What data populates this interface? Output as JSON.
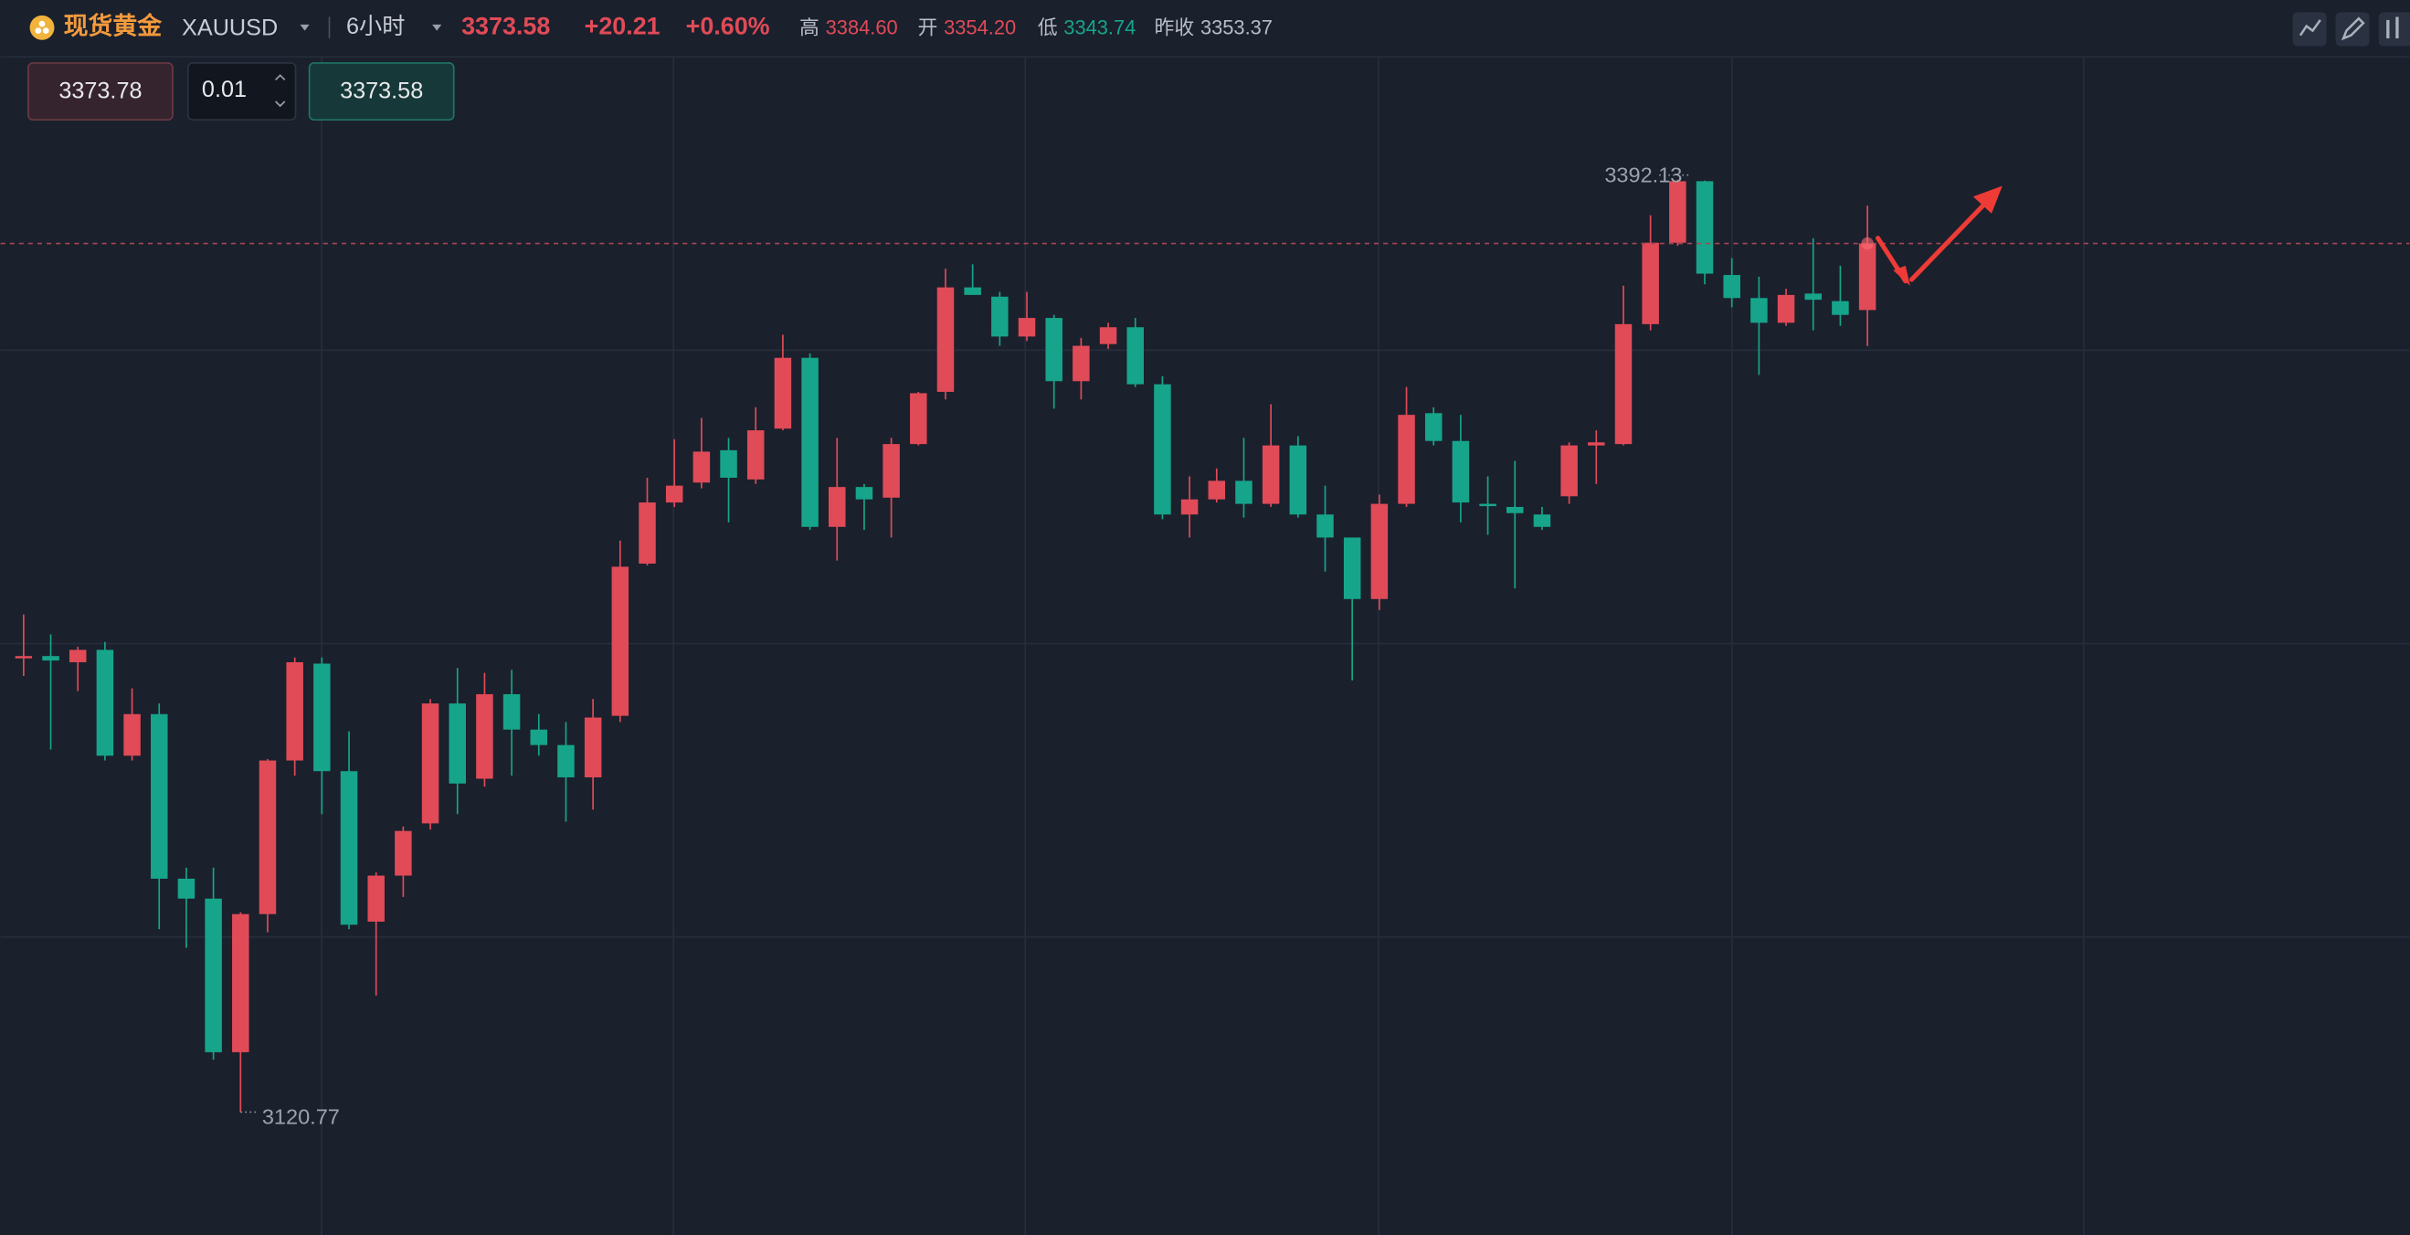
{
  "header": {
    "name": "现货黄金",
    "symbol": "XAUUSD",
    "period": "6小时",
    "price": "3373.58",
    "change": "+20.21",
    "change_pct": "+0.60%",
    "high_label": "高",
    "high": "3384.60",
    "open_label": "开",
    "open": "3354.20",
    "low_label": "低",
    "low": "3343.74",
    "prev_close_label": "昨收",
    "prev_close": "3353.37"
  },
  "order_panel": {
    "sell": "3373.78",
    "lots": "0.01",
    "buy": "3373.58"
  },
  "chart_data": {
    "type": "candlestick",
    "up_color": "#e04b57",
    "down_color": "#16a58a",
    "ylim": [
      3085.0,
      3427.9
    ],
    "open": [
      3253.1,
      3253.5,
      3251.7,
      3255.3,
      3224.5,
      3236.6,
      3188.7,
      3182.9,
      3138.2,
      3178.4,
      3223.1,
      3251.3,
      3220.0,
      3176.2,
      3189.6,
      3204.8,
      3239.7,
      3217.8,
      3242.4,
      3232.1,
      3227.6,
      3218.2,
      3236.1,
      3280.4,
      3298.2,
      3304.0,
      3313.4,
      3304.9,
      3319.7,
      3340.3,
      3291.1,
      3302.7,
      3299.6,
      3315.2,
      3330.4,
      3360.8,
      3358.1,
      3346.5,
      3351.9,
      3333.5,
      3344.3,
      3349.2,
      3332.6,
      3294.7,
      3299.1,
      3304.5,
      3297.8,
      3314.8,
      3294.7,
      3288.0,
      3270.1,
      3297.8,
      3324.2,
      3316.1,
      3297.8,
      3296.9,
      3294.7,
      3300.0,
      3314.8,
      3315.2,
      3350.1,
      3373.8,
      3391.7,
      3364.4,
      3357.7,
      3350.5,
      3359.0,
      3356.8,
      3354.2
    ],
    "high": [
      3265.6,
      3259.8,
      3256.2,
      3257.6,
      3244.1,
      3239.7,
      3191.9,
      3191.9,
      3178.9,
      3223.5,
      3253.1,
      3253.1,
      3231.6,
      3190.5,
      3203.9,
      3241.0,
      3250.0,
      3248.6,
      3249.5,
      3236.6,
      3234.3,
      3241.0,
      3287.1,
      3305.4,
      3316.6,
      3322.8,
      3317.0,
      3325.9,
      3347.0,
      3341.6,
      3317.0,
      3303.6,
      3317.0,
      3330.4,
      3366.2,
      3367.5,
      3359.5,
      3359.5,
      3352.8,
      3346.1,
      3350.5,
      3351.9,
      3334.9,
      3305.8,
      3308.1,
      3317.0,
      3326.8,
      3317.5,
      3303.1,
      3288.0,
      3300.5,
      3331.8,
      3325.9,
      3323.7,
      3305.8,
      3310.3,
      3296.9,
      3315.7,
      3319.2,
      3361.3,
      3381.8,
      3392.13,
      3391.9,
      3369.3,
      3363.9,
      3360.4,
      3375.1,
      3367.1,
      3384.6
    ],
    "low": [
      3247.7,
      3226.3,
      3243.3,
      3223.1,
      3223.1,
      3174.0,
      3168.6,
      3136.0,
      3120.77,
      3173.1,
      3218.7,
      3207.5,
      3174.0,
      3154.7,
      3183.4,
      3203.0,
      3207.5,
      3215.5,
      3218.7,
      3224.5,
      3205.3,
      3208.8,
      3234.3,
      3279.9,
      3296.9,
      3302.3,
      3292.4,
      3303.6,
      3319.2,
      3290.2,
      3281.3,
      3290.2,
      3288.0,
      3314.8,
      3328.2,
      3358.6,
      3343.8,
      3345.2,
      3325.5,
      3328.2,
      3342.9,
      3331.8,
      3293.3,
      3288.0,
      3298.2,
      3293.8,
      3296.9,
      3293.8,
      3278.1,
      3246.4,
      3266.9,
      3296.9,
      3314.8,
      3292.4,
      3288.8,
      3273.2,
      3290.2,
      3297.8,
      3303.6,
      3314.8,
      3348.3,
      3372.9,
      3361.7,
      3355.0,
      3335.3,
      3349.6,
      3348.3,
      3349.6,
      3343.74
    ],
    "close": [
      3253.5,
      3252.2,
      3255.3,
      3224.5,
      3236.6,
      3188.7,
      3182.9,
      3138.2,
      3178.4,
      3223.1,
      3251.7,
      3220.0,
      3175.3,
      3189.6,
      3202.6,
      3239.7,
      3216.4,
      3242.4,
      3232.1,
      3227.6,
      3218.2,
      3235.6,
      3279.5,
      3298.2,
      3303.1,
      3313.0,
      3305.4,
      3319.2,
      3340.3,
      3291.1,
      3302.7,
      3299.1,
      3315.2,
      3330.0,
      3360.8,
      3358.6,
      3346.5,
      3351.9,
      3333.5,
      3343.8,
      3349.2,
      3332.6,
      3294.7,
      3299.1,
      3304.5,
      3297.8,
      3314.8,
      3294.7,
      3288.0,
      3270.1,
      3297.8,
      3323.7,
      3316.1,
      3298.2,
      3297.3,
      3295.1,
      3291.1,
      3314.8,
      3315.7,
      3350.1,
      3373.8,
      3391.7,
      3364.8,
      3357.7,
      3350.5,
      3358.6,
      3357.2,
      3352.8,
      3373.58
    ]
  }
}
